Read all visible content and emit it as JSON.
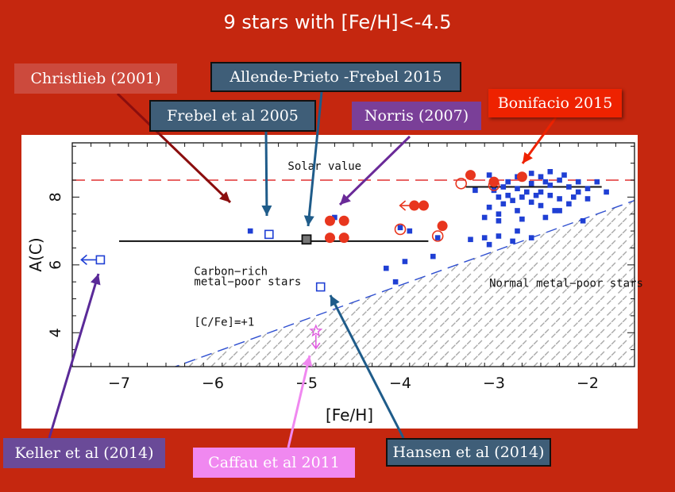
{
  "title": "9 stars with [Fe/H]<-4.5",
  "colors": {
    "background": "#c5270f",
    "blue_data": "#1f3fd4",
    "red_data": "#e8361e",
    "magenta_data": "#e05ee0",
    "solar_line": "#e03030"
  },
  "callouts": [
    {
      "key": "christlieb",
      "text": "Christlieb  (2001)",
      "fill": "#cc4a3d",
      "border": "#cc4a3d",
      "text_color": "#ffffff",
      "arrow_color": "#8b0e0e"
    },
    {
      "key": "allende",
      "text": "Allende-Prieto -Frebel 2015",
      "fill": "#3f5e78",
      "border": "#111111",
      "text_color": "#ffffff",
      "arrow_color": "#1f5c8a"
    },
    {
      "key": "frebel",
      "text": "Frebel et al 2005",
      "fill": "#3f5e78",
      "border": "#111111",
      "text_color": "#ffffff",
      "arrow_color": "#1f5c8a"
    },
    {
      "key": "norris",
      "text": "Norris (2007)",
      "fill": "#7a3f98",
      "border": "#7a3f98",
      "text_color": "#ffffff",
      "arrow_color": "#6a2a98"
    },
    {
      "key": "bonifacio",
      "text": "Bonifacio 2015",
      "fill": "#ee2200",
      "border": "#ee2200",
      "text_color": "#ffffff",
      "arrow_color": "#ee2200"
    },
    {
      "key": "keller",
      "text": "Keller et al (2014)",
      "fill": "#6a4a98",
      "border": "#6a4a98",
      "text_color": "#ffffff",
      "arrow_color": "#5a2a98"
    },
    {
      "key": "caffau",
      "text": "Caffau et al 2011",
      "fill": "#f088f0",
      "border": "#f088f0",
      "text_color": "#ffffff",
      "arrow_color": "#f088f0"
    },
    {
      "key": "hansen",
      "text": "Hansen et al (2014)",
      "fill": "#3f5e78",
      "border": "#111111",
      "text_color": "#ffffff",
      "arrow_color": "#1f5c8a"
    }
  ],
  "chart_data": {
    "type": "scatter",
    "xlabel": "[Fe/H]",
    "ylabel": "A(C)",
    "xlim": [
      -7.5,
      -1.5
    ],
    "ylim": [
      3,
      9.6
    ],
    "xticks": [
      -7,
      -6,
      -5,
      -4,
      -3,
      -2
    ],
    "yticks": [
      4,
      6,
      8
    ],
    "x_minor_step": 0.2,
    "y_minor_step": 0.5,
    "annotations": [
      {
        "key": "solar",
        "text": "Solar value",
        "x": -5.2,
        "y": 8.8
      },
      {
        "key": "carbon_rich_1",
        "text": "Carbon−rich",
        "x": -6.2,
        "y": 5.7
      },
      {
        "key": "carbon_rich_2",
        "text": "metal−poor stars",
        "x": -6.2,
        "y": 5.4
      },
      {
        "key": "cfe",
        "text": "[C/Fe]=+1",
        "x": -6.2,
        "y": 4.2
      },
      {
        "key": "normal",
        "text": "Normal metal−poor stars",
        "x": -3.05,
        "y": 5.35
      }
    ],
    "solar_line": {
      "y": 8.5,
      "x_range": [
        -7.5,
        -1.5
      ],
      "style": "dashed",
      "color": "#e03030"
    },
    "cfe_line": {
      "x_range": [
        -7.0,
        -1.5
      ],
      "slope": 1.0,
      "intercept": 9.4,
      "style": "dashed",
      "color": "#3050d0"
    },
    "hlines": [
      {
        "y": 6.7,
        "x_range": [
          -7.0,
          -3.7
        ]
      },
      {
        "y": 8.3,
        "x_range": [
          -3.3,
          -1.85
        ]
      }
    ],
    "series": [
      {
        "marker": "small-filled-square",
        "color": "#1f3fd4",
        "points": [
          [
            -5.6,
            7.0
          ],
          [
            -4.7,
            7.4
          ],
          [
            -4.0,
            7.1
          ],
          [
            -3.9,
            7.0
          ],
          [
            -4.15,
            5.9
          ],
          [
            -3.95,
            6.1
          ],
          [
            -4.05,
            5.5
          ],
          [
            -3.65,
            6.25
          ],
          [
            -3.6,
            6.8
          ],
          [
            -3.25,
            6.75
          ],
          [
            -3.1,
            6.8
          ],
          [
            -3.05,
            6.6
          ],
          [
            -2.95,
            6.85
          ],
          [
            -2.8,
            6.7
          ],
          [
            -2.6,
            6.8
          ],
          [
            -2.75,
            7.0
          ],
          [
            -3.1,
            7.4
          ],
          [
            -2.95,
            7.3
          ],
          [
            -2.75,
            7.6
          ],
          [
            -2.45,
            7.4
          ],
          [
            -2.3,
            7.6
          ],
          [
            -2.05,
            7.3
          ],
          [
            -3.05,
            7.7
          ],
          [
            -2.9,
            7.8
          ],
          [
            -2.8,
            7.9
          ],
          [
            -2.7,
            8.0
          ],
          [
            -2.6,
            7.85
          ],
          [
            -2.5,
            7.75
          ],
          [
            -2.4,
            8.05
          ],
          [
            -2.3,
            7.95
          ],
          [
            -2.2,
            7.8
          ],
          [
            -2.15,
            8.0
          ],
          [
            -3.2,
            8.2
          ],
          [
            -3.0,
            8.2
          ],
          [
            -2.9,
            8.3
          ],
          [
            -2.85,
            8.45
          ],
          [
            -2.75,
            8.25
          ],
          [
            -2.6,
            8.4
          ],
          [
            -2.5,
            8.15
          ],
          [
            -2.4,
            8.35
          ],
          [
            -2.3,
            8.5
          ],
          [
            -2.2,
            8.3
          ],
          [
            -2.1,
            8.15
          ],
          [
            -2.0,
            8.25
          ],
          [
            -1.9,
            8.45
          ],
          [
            -3.05,
            8.65
          ],
          [
            -2.75,
            8.6
          ],
          [
            -2.6,
            8.7
          ],
          [
            -2.5,
            8.6
          ],
          [
            -2.4,
            8.75
          ],
          [
            -2.25,
            8.65
          ],
          [
            -2.1,
            8.45
          ],
          [
            -2.95,
            8.0
          ],
          [
            -2.55,
            8.05
          ],
          [
            -2.35,
            7.6
          ],
          [
            -2.45,
            8.45
          ],
          [
            -2.65,
            8.15
          ],
          [
            -2.85,
            8.05
          ],
          [
            -1.8,
            8.15
          ],
          [
            -2.0,
            7.95
          ],
          [
            -2.95,
            7.5
          ],
          [
            -2.7,
            7.35
          ]
        ]
      },
      {
        "marker": "open-square",
        "color": "#1f3fd4",
        "points": [
          [
            -5.4,
            6.9
          ],
          [
            -4.85,
            5.35
          ],
          [
            -7.2,
            6.15
          ]
        ]
      },
      {
        "marker": "gray-filled-square",
        "color": "#1f3fd4",
        "points": [
          [
            -5.0,
            6.75
          ]
        ]
      },
      {
        "marker": "filled-circle",
        "color": "#e8361e",
        "points": [
          [
            -4.75,
            6.8
          ],
          [
            -4.6,
            6.8
          ],
          [
            -4.75,
            7.3
          ],
          [
            -4.6,
            7.3
          ],
          [
            -3.75,
            7.75
          ],
          [
            -3.85,
            7.75
          ],
          [
            -3.55,
            7.15
          ],
          [
            -3.25,
            8.65
          ],
          [
            -3.0,
            8.45
          ],
          [
            -2.7,
            8.6
          ]
        ]
      },
      {
        "marker": "open-circle",
        "color": "#e8361e",
        "points": [
          [
            -4.0,
            7.05
          ],
          [
            -3.6,
            6.85
          ],
          [
            -3.35,
            8.4
          ],
          [
            -3.0,
            8.35
          ]
        ]
      },
      {
        "marker": "open-star",
        "color": "#e05ee0",
        "points": [
          [
            -4.9,
            4.05
          ]
        ]
      }
    ],
    "upper_limit_arrows": [
      {
        "x": -7.2,
        "y": 6.15,
        "direction": "left",
        "color": "#1f3fd4"
      },
      {
        "x": -3.8,
        "y": 7.75,
        "direction": "left",
        "color": "#e8361e"
      },
      {
        "x": -4.9,
        "y": 4.05,
        "direction": "down",
        "color": "#e05ee0"
      }
    ]
  }
}
